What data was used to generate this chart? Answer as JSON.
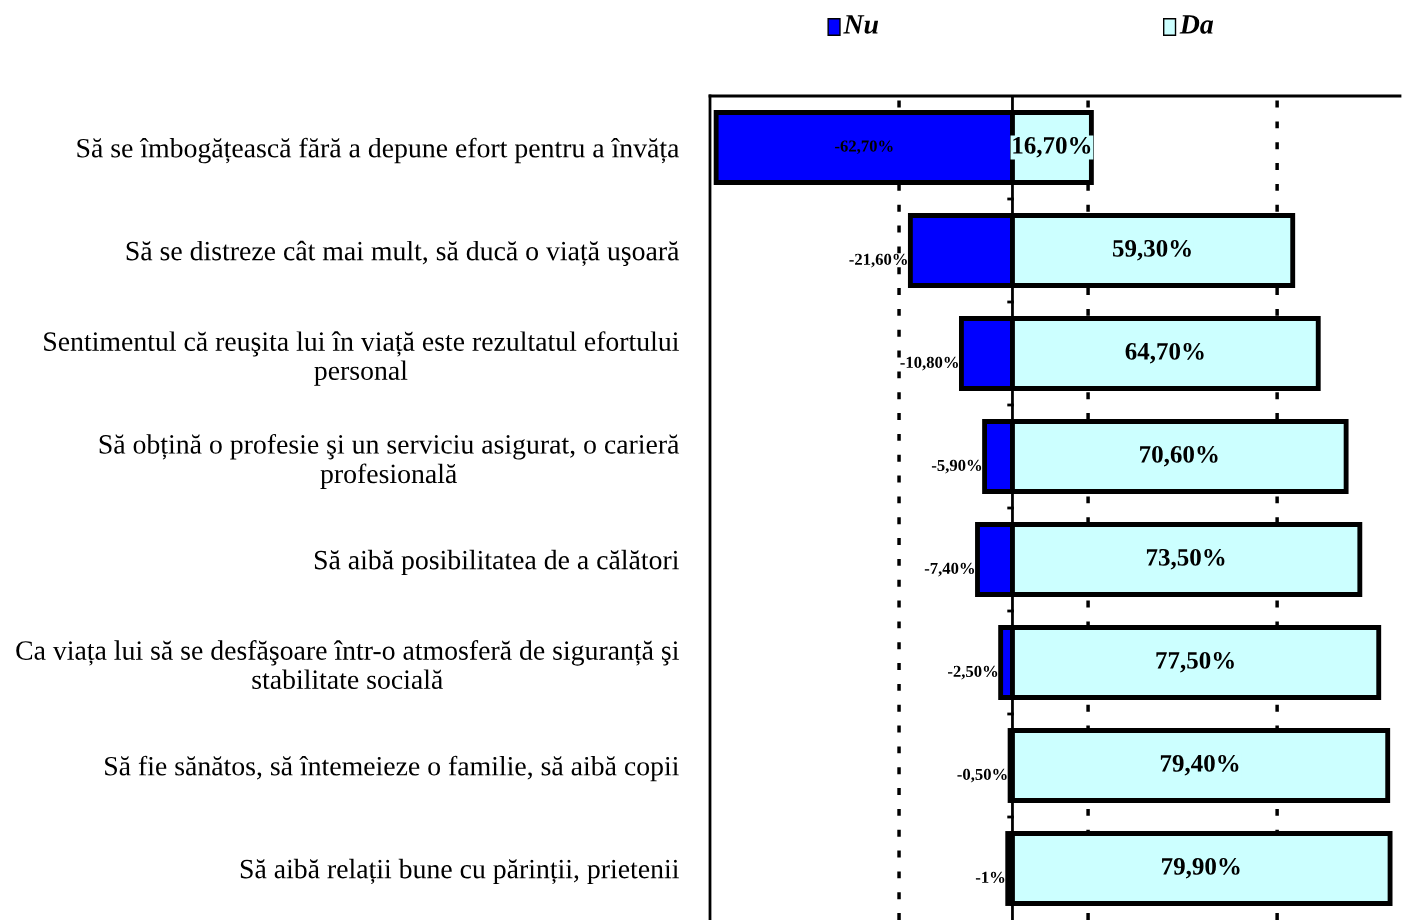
{
  "chart_data": {
    "type": "bar",
    "orientation": "horizontal",
    "stacked": true,
    "legend": "top",
    "categories": [
      "Să se îmbogățească fără a depune efort pentru a învăța",
      "Să se distreze cât mai mult, să ducă o viață uşoară",
      "Sentimentul că reuşita lui în viață este rezultatul efortului personal",
      "Să obțină o profesie şi un serviciu asigurat, o carieră profesională",
      "Să aibă posibilitatea de a călători",
      "Ca viața lui să se desfăşoare într-o atmosferă de siguranță şi stabilitate socială",
      "Să fie sănătos, să întemeieze o familie, să aibă copii",
      "Să aibă relații bune cu părinții, prietenii"
    ],
    "series": [
      {
        "name": "Nu",
        "color": "#0000ff",
        "values": [
          -62.7,
          -21.6,
          -10.8,
          -5.9,
          -7.4,
          -2.5,
          -0.5,
          -1
        ],
        "value_labels": [
          "-62,70%",
          "-21,60%",
          "-10,80%",
          "-5,90%",
          "-7,40%",
          "-2,50%",
          "-0,50%",
          "-1%"
        ]
      },
      {
        "name": "Da",
        "color": "#ccffff",
        "values": [
          16.7,
          59.3,
          64.7,
          70.6,
          73.5,
          77.5,
          79.4,
          79.9
        ],
        "value_labels": [
          "16,70%",
          "59,30%",
          "64,70%",
          "70,60%",
          "73,50%",
          "77,50%",
          "79,40%",
          "79,90%"
        ]
      }
    ],
    "xlim": [
      -64,
      82
    ],
    "xticks": [
      {
        "value": -24,
        "label": null
      },
      {
        "value": 16,
        "label": null
      },
      {
        "value": 56,
        "label": null
      }
    ],
    "grid": "x",
    "tick_labels": "y",
    "ref_lines": [
      {
        "axis": "x",
        "value": 0,
        "label": null,
        "color": "#000000",
        "line_style": "solid"
      }
    ]
  }
}
